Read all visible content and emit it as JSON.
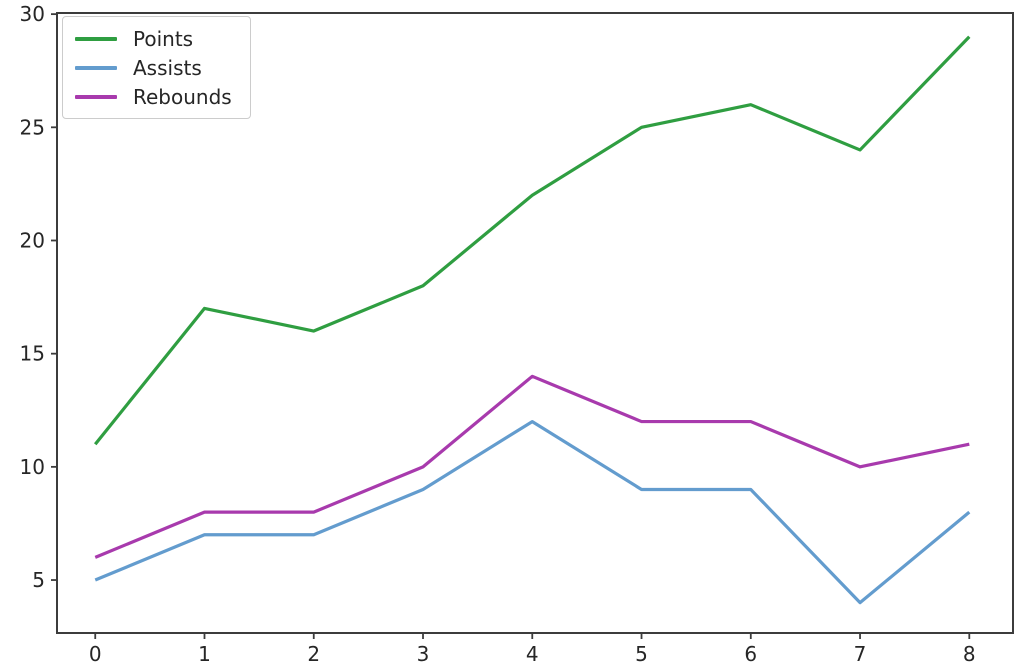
{
  "chart_data": {
    "type": "line",
    "title": "",
    "xlabel": "",
    "ylabel": "",
    "x": [
      0,
      1,
      2,
      3,
      4,
      5,
      6,
      7,
      8
    ],
    "series": [
      {
        "name": "Points",
        "color": "#2f9e41",
        "values": [
          11,
          17,
          16,
          18,
          22,
          25,
          26,
          24,
          29
        ]
      },
      {
        "name": "Assists",
        "color": "#639cce",
        "values": [
          5,
          7,
          7,
          9,
          12,
          9,
          9,
          4,
          8
        ]
      },
      {
        "name": "Rebounds",
        "color": "#a83aad",
        "values": [
          6,
          8,
          8,
          10,
          14,
          12,
          12,
          10,
          11
        ]
      }
    ],
    "x_ticks": [
      0,
      1,
      2,
      3,
      4,
      5,
      6,
      7,
      8
    ],
    "y_ticks": [
      5,
      10,
      15,
      20,
      25,
      30
    ],
    "xlim": [
      -0.35,
      8.4
    ],
    "ylim": [
      2.66,
      30.05
    ],
    "grid": false,
    "legend_position": "upper-left"
  },
  "figure": {
    "background": "#ffffff",
    "spine_color": "#3c3c3c",
    "tick_color": "#262626"
  }
}
